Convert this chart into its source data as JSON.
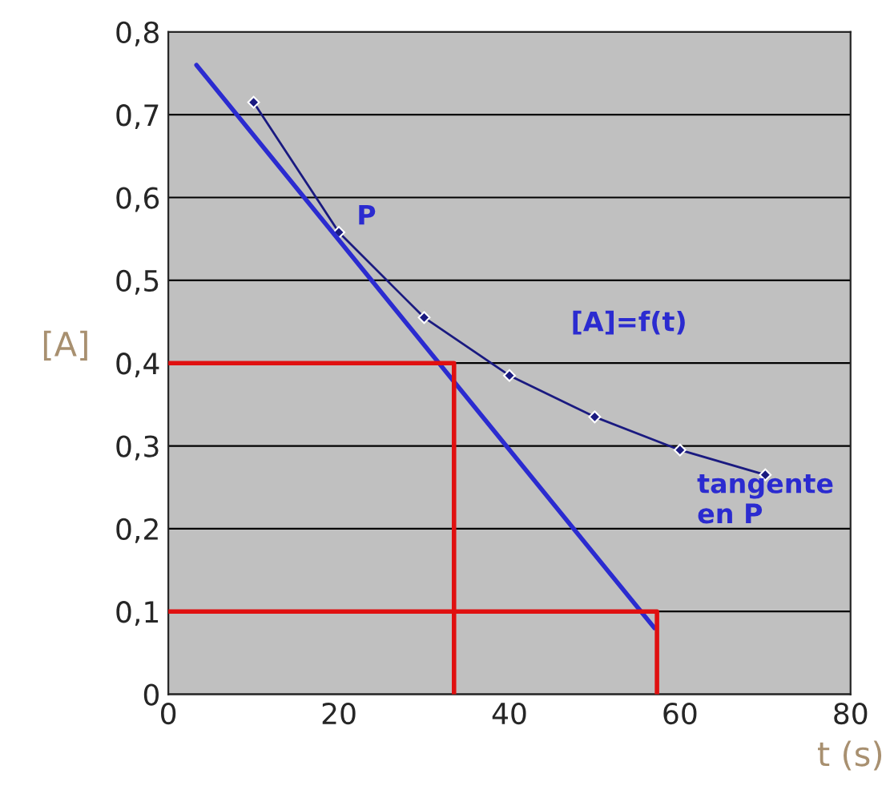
{
  "chart_data": {
    "type": "line",
    "xlabel": "t (s)",
    "ylabel": "[A]",
    "xlim": [
      0,
      80
    ],
    "ylim": [
      0,
      0.8
    ],
    "xticks": [
      0,
      20,
      40,
      60,
      80
    ],
    "yticks": [
      0,
      {
        "value": 0.1,
        "label": "0,1"
      },
      {
        "value": 0.2,
        "label": "0,2"
      },
      {
        "value": 0.3,
        "label": "0,3"
      },
      {
        "value": 0.4,
        "label": "0,4"
      },
      {
        "value": 0.5,
        "label": "0,5"
      },
      {
        "value": 0.6,
        "label": "0,6"
      },
      {
        "value": 0.7,
        "label": "0,7"
      },
      {
        "value": 0.8,
        "label": "0,8"
      }
    ],
    "grid": "y",
    "legend": false,
    "series": [
      {
        "color": "#1a1a80",
        "x": [
          10,
          20,
          30,
          40,
          50,
          60,
          70
        ],
        "values": [
          0.715,
          0.558,
          0.455,
          0.385,
          0.335,
          0.295,
          0.265
        ],
        "marker": "diamond"
      },
      {
        "color": "#2b2bd0",
        "x": [
          3.3,
          57
        ],
        "values": [
          0.76,
          0.08
        ],
        "marker": "none"
      },
      {
        "color": "#e01010",
        "x": [
          0,
          33.5,
          33.5
        ],
        "values": [
          0.4,
          0.4,
          0
        ],
        "marker": "none"
      },
      {
        "color": "#e01010",
        "x": [
          0,
          57.3,
          57.3
        ],
        "values": [
          0.1,
          0.1,
          0
        ],
        "marker": "none"
      }
    ],
    "annotations": [
      {
        "text": "P",
        "x": 20,
        "y": 0.558
      },
      "[A]=f(t)",
      "tangente\nen P"
    ]
  }
}
